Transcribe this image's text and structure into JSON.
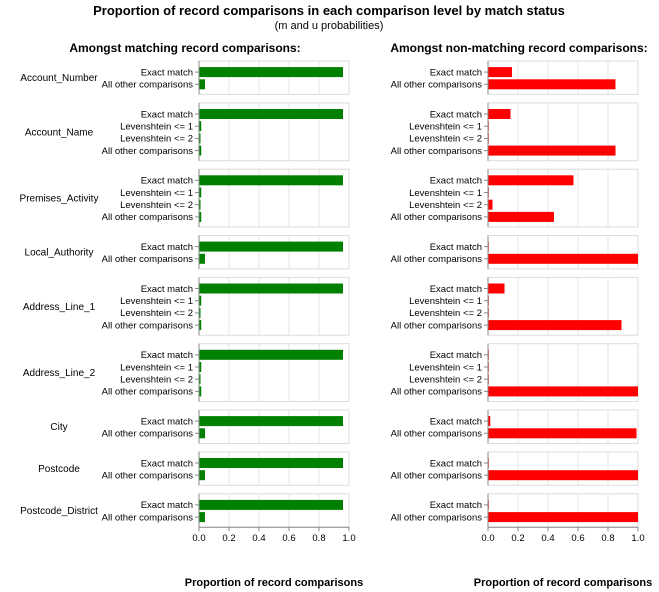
{
  "colors": {
    "match": "#008000",
    "nonmatch": "#ff0000",
    "grid": "#e6e6e6",
    "frame": "#dddddd"
  },
  "chart_data": {
    "type": "bar",
    "orientation": "horizontal",
    "title": "Proportion of record comparisons in each comparison level by match status",
    "subtitle": "(m and u probabilities)",
    "xlabel": "Proportion of record comparisons",
    "xlim": [
      0,
      1
    ],
    "xticks": [
      "0.0",
      "0.2",
      "0.4",
      "0.6",
      "0.8",
      "1.0"
    ],
    "grid": true,
    "panels": [
      {
        "title": "Amongst matching record comparisons:",
        "series_key": "m"
      },
      {
        "title": "Amongst non-matching record comparisons:",
        "series_key": "u"
      }
    ],
    "features": [
      {
        "name": "Account_Number",
        "levels": [
          "Exact match",
          "All other comparisons"
        ],
        "m": [
          0.96,
          0.04
        ],
        "u": [
          0.16,
          0.85
        ]
      },
      {
        "name": "Account_Name",
        "levels": [
          "Exact match",
          "Levenshtein <= 1",
          "Levenshtein <= 2",
          "All other comparisons"
        ],
        "m": [
          0.96,
          0.015,
          0.01,
          0.015
        ],
        "u": [
          0.15,
          0.002,
          0.002,
          0.85
        ]
      },
      {
        "name": "Premises_Activity",
        "levels": [
          "Exact match",
          "Levenshtein <= 1",
          "Levenshtein <= 2",
          "All other comparisons"
        ],
        "m": [
          0.96,
          0.015,
          0.01,
          0.015
        ],
        "u": [
          0.57,
          0.003,
          0.03,
          0.44
        ]
      },
      {
        "name": "Local_Authority",
        "levels": [
          "Exact match",
          "All other comparisons"
        ],
        "m": [
          0.96,
          0.04
        ],
        "u": [
          0.005,
          1.0
        ]
      },
      {
        "name": "Address_Line_1",
        "levels": [
          "Exact match",
          "Levenshtein <= 1",
          "Levenshtein <= 2",
          "All other comparisons"
        ],
        "m": [
          0.96,
          0.015,
          0.01,
          0.015
        ],
        "u": [
          0.11,
          0.002,
          0.002,
          0.89
        ]
      },
      {
        "name": "Address_Line_2",
        "levels": [
          "Exact match",
          "Levenshtein <= 1",
          "Levenshtein <= 2",
          "All other comparisons"
        ],
        "m": [
          0.96,
          0.015,
          0.01,
          0.015
        ],
        "u": [
          0.001,
          0.001,
          0.001,
          1.0
        ]
      },
      {
        "name": "City",
        "levels": [
          "Exact match",
          "All other comparisons"
        ],
        "m": [
          0.96,
          0.04
        ],
        "u": [
          0.015,
          0.99
        ]
      },
      {
        "name": "Postcode",
        "levels": [
          "Exact match",
          "All other comparisons"
        ],
        "m": [
          0.96,
          0.04
        ],
        "u": [
          0.001,
          1.0
        ]
      },
      {
        "name": "Postcode_District",
        "levels": [
          "Exact match",
          "All other comparisons"
        ],
        "m": [
          0.96,
          0.04
        ],
        "u": [
          0.001,
          1.0
        ]
      }
    ]
  }
}
